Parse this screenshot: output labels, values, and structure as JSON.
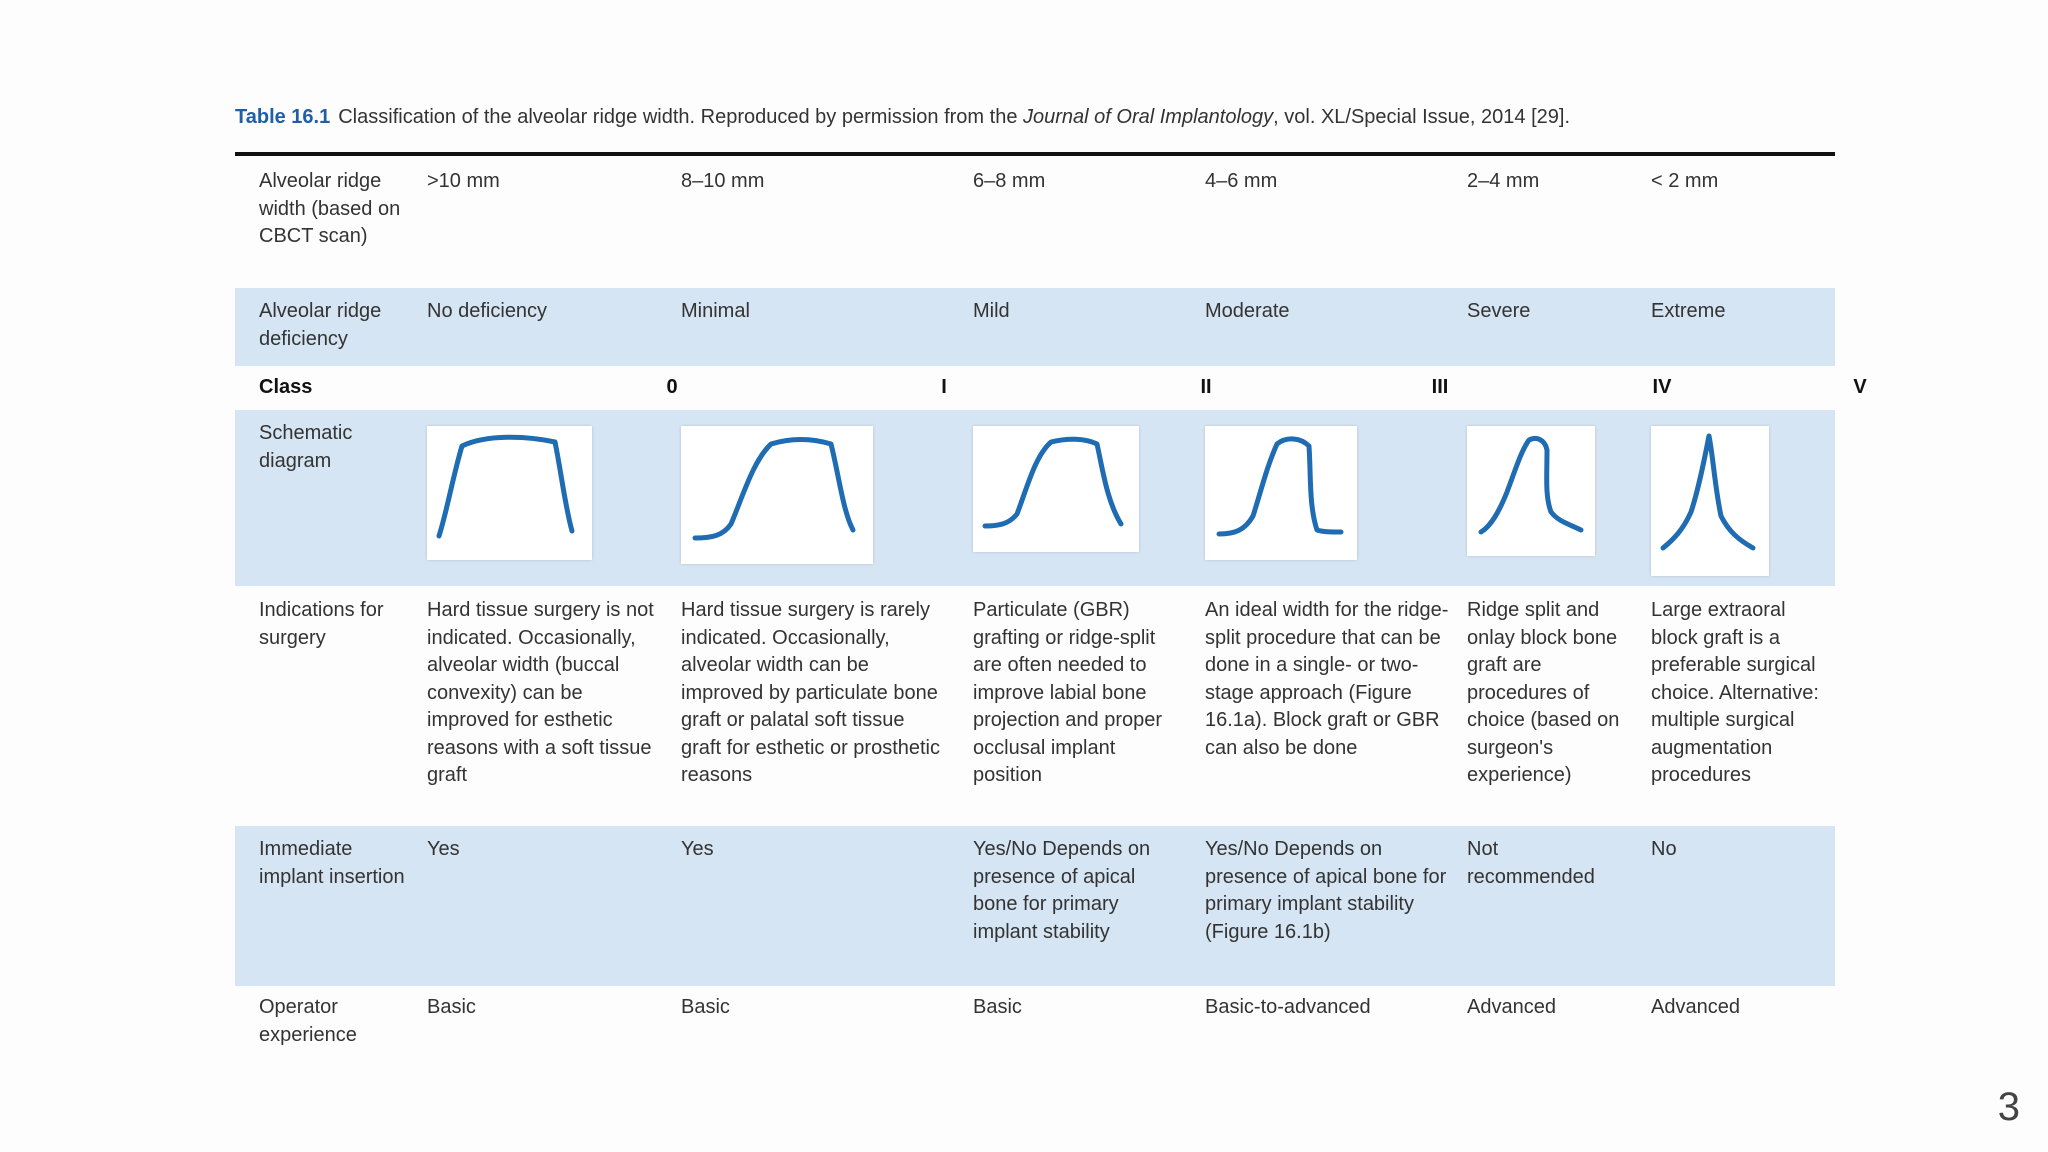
{
  "caption": {
    "label": "Table 16.1",
    "text_before": "Classification of the alveolar ridge width. Reproduced by permission from the ",
    "journal": "Journal of Oral Implantology",
    "text_after": ", vol. XL/Special Issue, 2014 [29]."
  },
  "rows": {
    "width": {
      "header": "Alveolar ridge width (based on CBCT scan)",
      "values": [
        ">10 mm",
        "8–10 mm",
        "6–8 mm",
        "4–6 mm",
        "2–4 mm",
        "< 2 mm"
      ]
    },
    "deficiency": {
      "header": "Alveolar ridge deficiency",
      "values": [
        "No deficiency",
        "Minimal",
        "Mild",
        "Moderate",
        "Severe",
        "Extreme"
      ]
    },
    "class": {
      "header": "Class",
      "values": [
        "0",
        "I",
        "II",
        "III",
        "IV",
        "V"
      ]
    },
    "schematic": {
      "header": "Schematic diagram",
      "icons": [
        "ridge-class-0-icon",
        "ridge-class-I-icon",
        "ridge-class-II-icon",
        "ridge-class-III-icon",
        "ridge-class-IV-icon",
        "ridge-class-V-icon"
      ]
    },
    "indications": {
      "header": "Indications for surgery",
      "values": [
        "Hard tissue surgery is not indicated. Occasionally, alveolar width (buccal convexity) can be improved for esthetic reasons with a soft tissue graft",
        "Hard tissue surgery is rarely indicated. Occasionally, alveolar width can be improved by particulate bone graft or palatal soft tissue graft for esthetic or prosthetic reasons",
        "Particulate (GBR) grafting or ridge-split are often needed to improve labial bone projection and proper occlusal implant position",
        "An ideal width for the ridge-split procedure that can be done in a single- or two-stage approach (Figure 16.1a). Block graft or GBR can also be done",
        "Ridge split and onlay block bone graft are procedures of choice (based on surgeon's experience)",
        "Large extraoral block graft is a preferable surgical choice. Alternative: multiple surgical augmentation procedures"
      ]
    },
    "immediate": {
      "header": "Immediate implant insertion",
      "values": [
        "Yes",
        "Yes",
        "Yes/No Depends on presence of apical bone for primary implant stability",
        "Yes/No Depends on presence of apical bone for primary implant stability (Figure 16.1b)",
        "Not recommended",
        "No"
      ]
    },
    "operator": {
      "header": "Operator experience",
      "values": [
        "Basic",
        "Basic",
        "Basic",
        "Basic-to-advanced",
        "Advanced",
        "Advanced"
      ]
    }
  },
  "page_number": "3",
  "colors": {
    "accent": "#1f5fa8",
    "row_shade": "#d6e5f3",
    "diagram_stroke": "#1f6cb3"
  }
}
